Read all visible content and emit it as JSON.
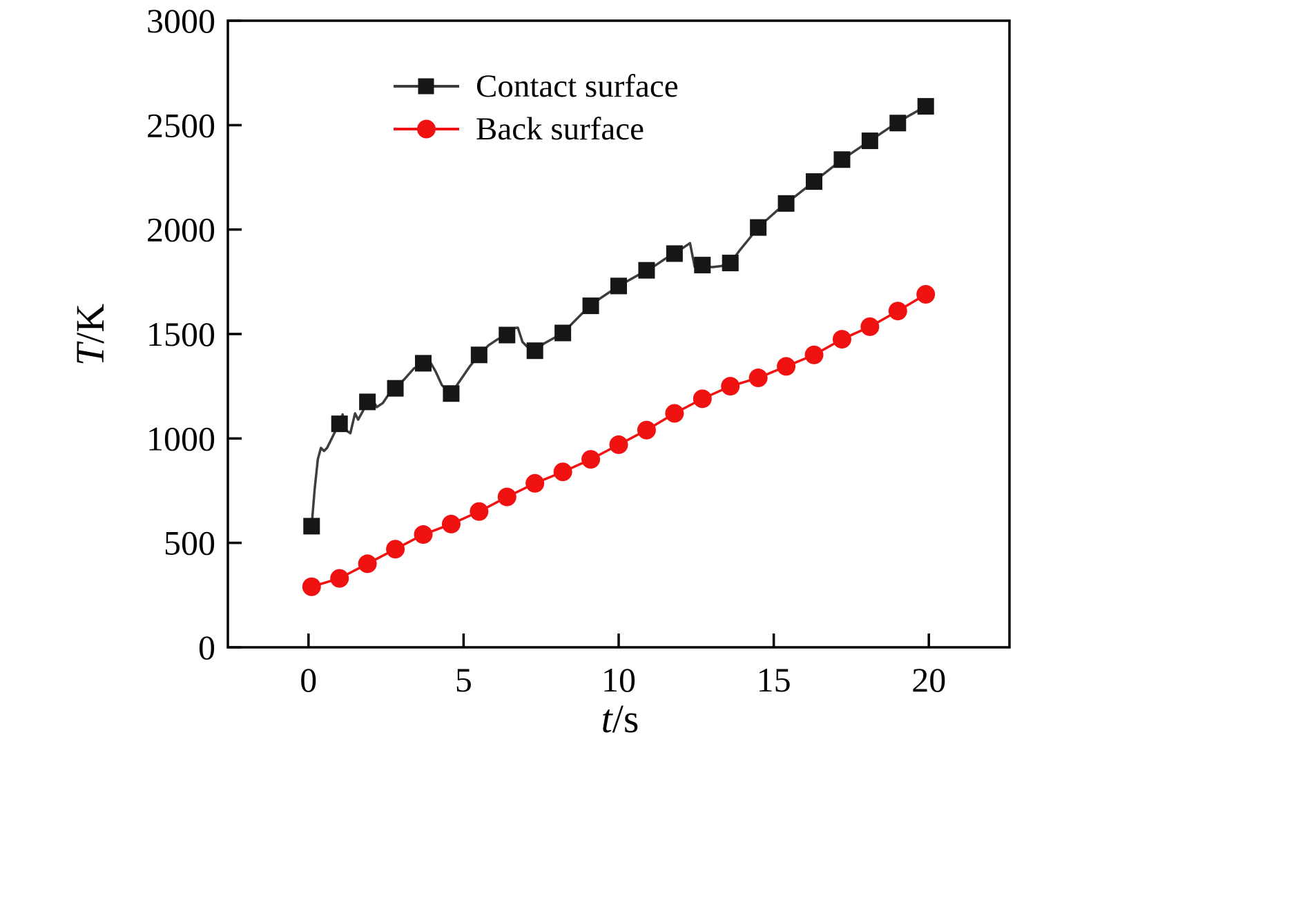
{
  "chart_data": {
    "type": "line",
    "title": "",
    "xlabel_var": "t",
    "xlabel_unit": "/s",
    "ylabel_var": "T",
    "ylabel_unit": "/K",
    "xlim": [
      -2.6,
      22.6
    ],
    "ylim": [
      0,
      3000
    ],
    "x_ticks": [
      0,
      5,
      10,
      15,
      20
    ],
    "y_ticks": [
      0,
      500,
      1000,
      1500,
      2000,
      2500,
      3000
    ],
    "grid": false,
    "legend_position": "upper-left-inside",
    "axis_color": "#000000",
    "series": [
      {
        "name": "Contact surface",
        "marker": "square",
        "marker_color": "#161616",
        "line_color": "#3d3d3d",
        "x": [
          0.1,
          1.0,
          1.9,
          2.8,
          3.7,
          4.6,
          5.5,
          6.4,
          7.3,
          8.2,
          9.1,
          10.0,
          10.9,
          11.8,
          12.7,
          13.6,
          14.5,
          15.4,
          16.3,
          17.2,
          18.1,
          19.0,
          19.9
        ],
        "y": [
          580,
          1070,
          1175,
          1240,
          1360,
          1215,
          1400,
          1495,
          1420,
          1505,
          1635,
          1730,
          1805,
          1885,
          1830,
          1840,
          2010,
          2125,
          2230,
          2335,
          2425,
          2510,
          2590
        ],
        "line_x": [
          0.1,
          0.2,
          0.3,
          0.4,
          0.5,
          0.6,
          0.75,
          0.9,
          1.0,
          1.1,
          1.2,
          1.35,
          1.5,
          1.6,
          1.75,
          1.9,
          2.05,
          2.2,
          2.4,
          2.6,
          2.8,
          3.1,
          3.4,
          3.7,
          3.9,
          4.1,
          4.3,
          4.6,
          4.9,
          5.2,
          5.5,
          5.8,
          6.1,
          6.4,
          6.6,
          6.75,
          6.9,
          7.1,
          7.3,
          7.6,
          7.9,
          8.2,
          8.5,
          8.8,
          9.1,
          9.4,
          9.7,
          10.0,
          10.3,
          10.6,
          10.9,
          11.2,
          11.5,
          11.8,
          12.1,
          12.3,
          12.45,
          12.7,
          13.0,
          13.3,
          13.6,
          13.9,
          14.2,
          14.5,
          14.8,
          15.1,
          15.4,
          15.7,
          16.0,
          16.3,
          16.6,
          16.9,
          17.2,
          17.5,
          17.8,
          18.1,
          18.4,
          18.7,
          19.0,
          19.3,
          19.6,
          19.9
        ],
        "line_y": [
          580,
          760,
          900,
          955,
          940,
          955,
          1000,
          1045,
          1070,
          1115,
          1040,
          1025,
          1120,
          1090,
          1130,
          1175,
          1190,
          1150,
          1170,
          1215,
          1240,
          1285,
          1335,
          1360,
          1372,
          1320,
          1255,
          1215,
          1280,
          1345,
          1400,
          1445,
          1475,
          1495,
          1528,
          1530,
          1462,
          1432,
          1420,
          1455,
          1480,
          1505,
          1550,
          1595,
          1635,
          1670,
          1700,
          1730,
          1755,
          1780,
          1805,
          1830,
          1860,
          1885,
          1915,
          1935,
          1822,
          1830,
          1820,
          1825,
          1840,
          1900,
          1955,
          2010,
          2050,
          2090,
          2125,
          2160,
          2195,
          2230,
          2265,
          2300,
          2335,
          2365,
          2395,
          2425,
          2455,
          2485,
          2510,
          2540,
          2565,
          2590
        ]
      },
      {
        "name": "Back surface",
        "marker": "circle",
        "marker_color": "#f01111",
        "line_color": "#f01111",
        "x": [
          0.1,
          1.0,
          1.9,
          2.8,
          3.7,
          4.6,
          5.5,
          6.4,
          7.3,
          8.2,
          9.1,
          10.0,
          10.9,
          11.8,
          12.7,
          13.6,
          14.5,
          15.4,
          16.3,
          17.2,
          18.1,
          19.0,
          19.9
        ],
        "y": [
          290,
          330,
          400,
          470,
          540,
          590,
          650,
          720,
          785,
          840,
          900,
          970,
          1040,
          1120,
          1190,
          1250,
          1290,
          1345,
          1400,
          1475,
          1535,
          1610,
          1690
        ]
      }
    ]
  }
}
